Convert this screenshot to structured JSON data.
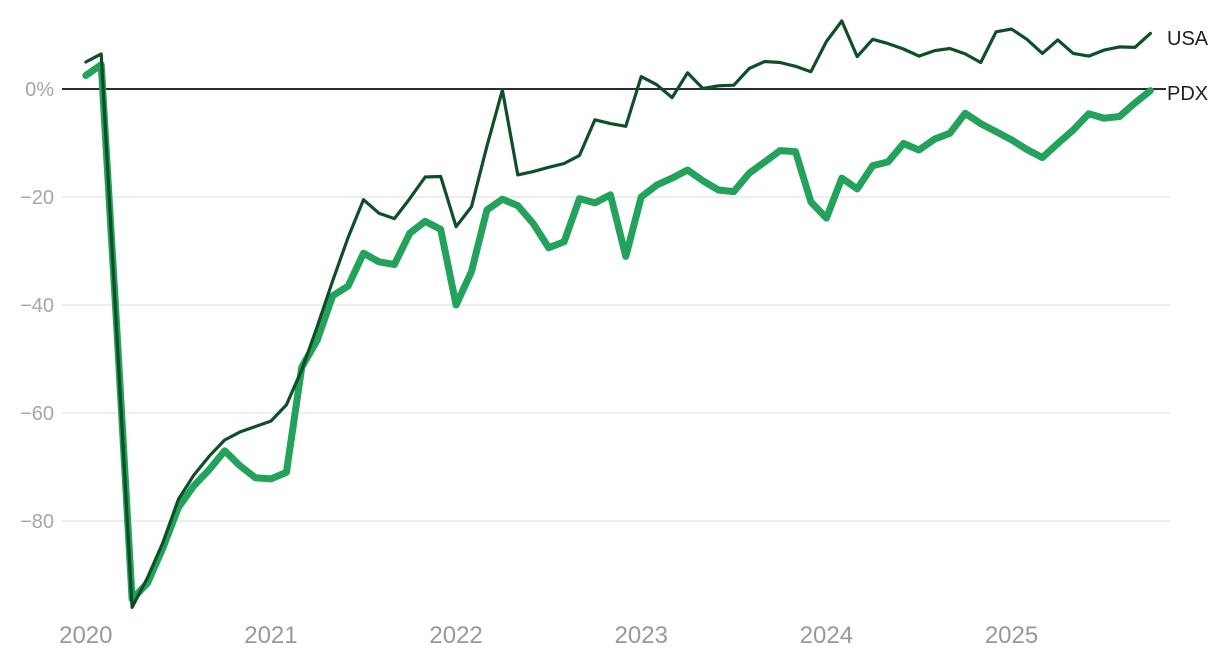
{
  "chart_data": {
    "type": "line",
    "title": "",
    "xlabel": "",
    "ylabel": "",
    "x_unit": "month",
    "x": [
      "2020-01",
      "2020-02",
      "2020-03",
      "2020-04",
      "2020-05",
      "2020-06",
      "2020-07",
      "2020-08",
      "2020-09",
      "2020-10",
      "2020-11",
      "2020-12",
      "2021-01",
      "2021-02",
      "2021-03",
      "2021-04",
      "2021-05",
      "2021-06",
      "2021-07",
      "2021-08",
      "2021-09",
      "2021-10",
      "2021-11",
      "2021-12",
      "2022-01",
      "2022-02",
      "2022-03",
      "2022-04",
      "2022-05",
      "2022-06",
      "2022-07",
      "2022-08",
      "2022-09",
      "2022-10",
      "2022-11",
      "2022-12",
      "2023-01",
      "2023-02",
      "2023-03",
      "2023-04",
      "2023-05",
      "2023-06",
      "2023-07",
      "2023-08",
      "2023-09",
      "2023-10",
      "2023-11",
      "2023-12",
      "2024-01",
      "2024-02",
      "2024-03",
      "2024-04",
      "2024-05",
      "2024-06",
      "2024-07",
      "2024-08",
      "2024-09",
      "2024-10",
      "2024-11",
      "2024-12",
      "2025-01",
      "2025-02",
      "2025-03",
      "2025-04",
      "2025-05",
      "2025-06",
      "2025-07",
      "2025-08",
      "2025-09",
      "2025-10"
    ],
    "x_tick_labels": [
      "2020",
      "2021",
      "2022",
      "2023",
      "2024",
      "2025"
    ],
    "y_axis": {
      "tick_labels": [
        "0%",
        "−20",
        "−40",
        "−60",
        "−80"
      ],
      "tick_values": [
        0,
        -20,
        -40,
        -60,
        -80
      ],
      "ylim": [
        -100,
        16
      ],
      "unit": "percent"
    },
    "grid": "horizontal",
    "zero_line": true,
    "legend_position": "end-of-lines-right",
    "series": [
      {
        "name": "PDX",
        "color": "#22a25a",
        "stroke_width": 7,
        "values": [
          2.5,
          4.5,
          -44,
          -94.5,
          -91.5,
          -85,
          -77.5,
          -73.5,
          -70.5,
          -67,
          -69.8,
          -72,
          -72.2,
          -71,
          -51.5,
          -46.5,
          -38.3,
          -36.5,
          -30.4,
          -32,
          -32.5,
          -26.7,
          -24.5,
          -26,
          -40,
          -33.8,
          -22.4,
          -20.4,
          -21.6,
          -24.9,
          -29.4,
          -28.3,
          -20.3,
          -21.1,
          -19.6,
          -31,
          -20,
          -17.8,
          -16.5,
          -15,
          -17,
          -18.7,
          -19,
          -15.6,
          -13.5,
          -11.4,
          -11.6,
          -20.9,
          -23.9,
          -16.5,
          -18.5,
          -14.2,
          -13.5,
          -10.1,
          -11.3,
          -9.3,
          -8.2,
          -4.5,
          -6.4,
          -7.9,
          -9.4,
          -11.2,
          -12.7,
          -10.1,
          -7.6,
          -4.6,
          -5.4,
          -5.1,
          -2.6,
          -0.3
        ]
      },
      {
        "name": "USA",
        "color": "#0f4f28",
        "stroke_width": 3.2,
        "values": [
          5,
          6.5,
          -45,
          -96,
          -90.5,
          -84,
          -76,
          -71.5,
          -68,
          -65,
          -63.5,
          -62.5,
          -61.5,
          -58.5,
          -52,
          -44,
          -35.5,
          -27.5,
          -20.5,
          -23,
          -24,
          -20.3,
          -16.3,
          -16.2,
          -25.5,
          -21.8,
          -10.6,
          -0.2,
          -15.9,
          -15.3,
          -14.5,
          -13.8,
          -12.3,
          -5.7,
          -6.4,
          -6.9,
          2.3,
          0.8,
          -1.6,
          3,
          0.1,
          0.6,
          0.7,
          3.8,
          5.1,
          4.9,
          4.2,
          3.2,
          8.8,
          12.6,
          6,
          9.2,
          8.4,
          7.4,
          6.1,
          7.1,
          7.5,
          6.5,
          4.9,
          10.6,
          11.1,
          9.2,
          6.6,
          9.1,
          6.6,
          6.1,
          7.2,
          7.8,
          7.7,
          10.3
        ]
      }
    ],
    "legend": {
      "usa_label": "USA",
      "pdx_label": "PDX"
    }
  },
  "colors": {
    "background": "#ffffff",
    "zero_line": "#2d2d2d",
    "gridline": "#e9e9e9",
    "y_tick_text": "#a6a6a6",
    "x_tick_text": "#999999",
    "legend_text": "#1f1f1f"
  }
}
